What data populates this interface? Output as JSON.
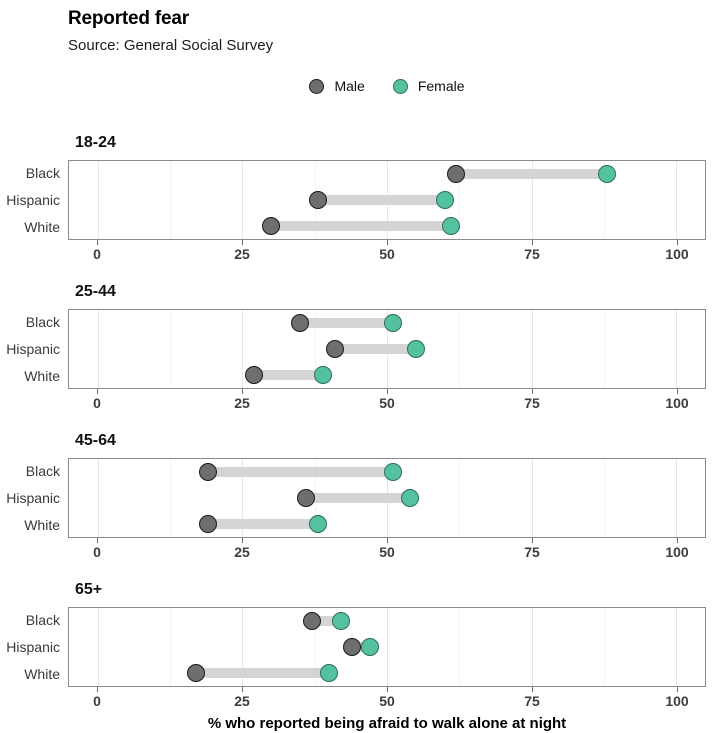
{
  "header": {
    "title": "Reported fear",
    "subtitle": "Source: General Social Survey"
  },
  "legend": {
    "items": [
      {
        "label": "Male",
        "fill": "#6e6e6e",
        "stroke": "#1a1a1a"
      },
      {
        "label": "Female",
        "fill": "#54c1a1",
        "stroke": "#2f6d5a"
      }
    ]
  },
  "chart_data": {
    "type": "dumbbell",
    "title": "Reported fear",
    "subtitle": "Source: General Social Survey",
    "xlabel": "% who reported being afraid to walk alone at night",
    "ylabel": "",
    "xlim": [
      -5,
      105
    ],
    "x_ticks": [
      0,
      25,
      50,
      75,
      100
    ],
    "x_minor_ticks": [
      12.5,
      37.5,
      62.5,
      87.5
    ],
    "grid": "vertical-major-and-minor",
    "legend_position": "top-center",
    "categories": [
      "Black",
      "Hispanic",
      "White"
    ],
    "series_names": [
      "Male",
      "Female"
    ],
    "panels": [
      {
        "age_group": "18-24",
        "rows": [
          {
            "category": "Black",
            "male": 62,
            "female": 88
          },
          {
            "category": "Hispanic",
            "male": 38,
            "female": 60
          },
          {
            "category": "White",
            "male": 30,
            "female": 61
          }
        ]
      },
      {
        "age_group": "25-44",
        "rows": [
          {
            "category": "Black",
            "male": 35,
            "female": 51
          },
          {
            "category": "Hispanic",
            "male": 41,
            "female": 55
          },
          {
            "category": "White",
            "male": 27,
            "female": 39
          }
        ]
      },
      {
        "age_group": "45-64",
        "rows": [
          {
            "category": "Black",
            "male": 19,
            "female": 51
          },
          {
            "category": "Hispanic",
            "male": 36,
            "female": 54
          },
          {
            "category": "White",
            "male": 19,
            "female": 38
          }
        ]
      },
      {
        "age_group": "65+",
        "rows": [
          {
            "category": "Black",
            "male": 37,
            "female": 42
          },
          {
            "category": "Hispanic",
            "male": 44,
            "female": 47
          },
          {
            "category": "White",
            "male": 17,
            "female": 40
          }
        ]
      }
    ],
    "colors": {
      "male_fill": "#6e6e6e",
      "male_stroke": "#1a1a1a",
      "female_fill": "#54c1a1",
      "female_stroke": "#2f6d5a",
      "connector": "#d4d4d4",
      "grid_major": "#e7e7e7",
      "grid_minor": "#f3f3f3",
      "panel_border": "#8a8a8a"
    }
  }
}
